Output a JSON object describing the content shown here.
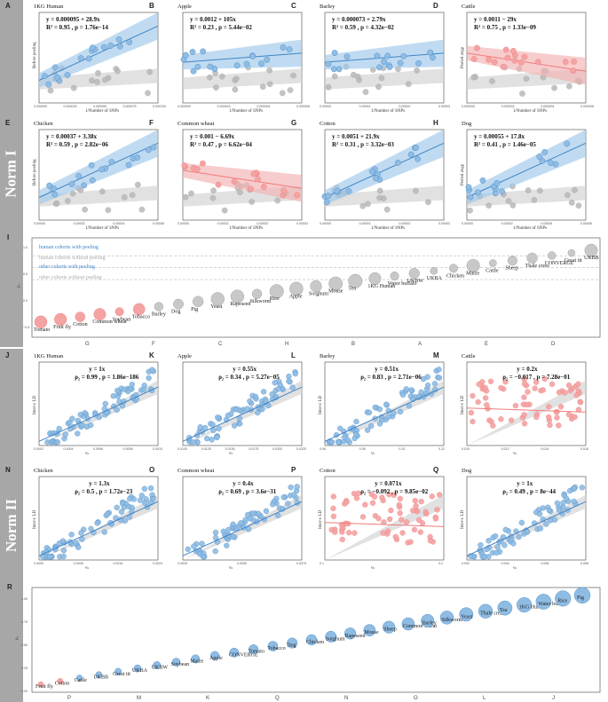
{
  "colors": {
    "blue": "#3f84c6",
    "blue_fill": "#8fbce3",
    "red": "#f07a7a",
    "red_fill": "#f4a3a3",
    "grey": "#b9b9b9",
    "grey_band": "#d4d4d4",
    "blue_band": "#9ec8ea",
    "red_band": "#f3b0b0",
    "sidebar": "#a7a7a7"
  },
  "sections": [
    {
      "label": "Norm I"
    },
    {
      "label": "Norm II"
    }
  ],
  "panels_top": [
    {
      "letter": "A",
      "title": "1KG Human",
      "eq": "y = 0.000095 + 28.9x",
      "stat": "R² = 0.95 , p = 1.76e−14",
      "xlabel": "1/Number of SNPs",
      "ylabel": "Before peeling",
      "color": "blue",
      "trend": "up",
      "xticks": [
        "0.000000",
        "0.000025",
        "0.000050",
        "0.000075",
        "0.000100"
      ]
    },
    {
      "letter": "B",
      "title": "Apple",
      "eq": "y = 0.0012 + 105x",
      "stat": "R² = 0.23 , p = 5.44e−02",
      "xlabel": "1/Number of SNPs",
      "ylabel": "",
      "color": "blue",
      "trend": "flat",
      "xticks": [
        "0.000000",
        "0.000002",
        "0.000004",
        "0.000006"
      ]
    },
    {
      "letter": "C",
      "title": "Barley",
      "eq": "y = 0.000073 + 2.79x",
      "stat": "R² = 0.59 , p = 4.32e−02",
      "xlabel": "1/Number of SNPs",
      "ylabel": "",
      "color": "blue",
      "trend": "flat",
      "xticks": [
        "0.00000",
        "0.00001",
        "0.00002",
        "0.00003"
      ]
    },
    {
      "letter": "D",
      "title": "Cattle",
      "eq": "y = 0.0011 − 29x",
      "stat": "R² = 0.75 , p = 1.33e−09",
      "xlabel": "1/Number of SNPs",
      "ylabel": "Peeled avgρ",
      "color": "red",
      "trend": "down",
      "xticks": [
        "0.000000",
        "0.000002",
        "0.000004",
        "0.000006"
      ]
    },
    {
      "letter": "E",
      "title": "Chicken",
      "eq": "y = 0.00037 + 3.38x",
      "stat": "R² = 0.59 , p = 2.82e−06",
      "xlabel": "1/Number of SNPs",
      "ylabel": "Before peeling",
      "color": "blue",
      "trend": "up",
      "xticks": [
        "0.00000",
        "0.00002",
        "0.00004",
        "0.00006"
      ]
    },
    {
      "letter": "F",
      "title": "Common wheat",
      "eq": "y = 0.001 − 6.69x",
      "stat": "R² = 0.47 , p = 6.62e−04",
      "xlabel": "1/Number of SNPs",
      "ylabel": "",
      "color": "red",
      "trend": "down",
      "xticks": [
        "0.00000",
        "0.00001",
        "0.00002",
        "0.00003"
      ]
    },
    {
      "letter": "G",
      "title": "Cotton",
      "eq": "y = 0.0051 + 21.9x",
      "stat": "R² = 0.31 , p = 3.32e−03",
      "xlabel": "1/Number of SNPs",
      "ylabel": "",
      "color": "blue",
      "trend": "up",
      "xticks": [
        "0.00000",
        "0.00001",
        "0.00002",
        "0.00003"
      ]
    },
    {
      "letter": "H",
      "title": "Dog",
      "eq": "y = 0.00055 + 17.8x",
      "stat": "R² = 0.41 , p = 1.46e−05",
      "xlabel": "1/Number of SNPs",
      "ylabel": "Peeled avgρ",
      "color": "blue",
      "trend": "up",
      "xticks": [
        "0.00000",
        "0.00002",
        "0.00004",
        "0.00006"
      ]
    }
  ],
  "panel_I": {
    "letter": "I",
    "ylabel": "ρ₁",
    "yticks": [
      "1.0",
      "0.5",
      "0.0",
      "−0.5"
    ],
    "legend": [
      "human cohorts with peeling",
      "human cohorts without peeling",
      "other cohorts with peeling",
      "other cohorts without peeling"
    ],
    "labels": [
      "Tomato",
      "Fruit fly",
      "Cotton",
      "Common wheat",
      "Soybean",
      "Tobacco",
      "Barley",
      "Dog",
      "Pig",
      "Yeast",
      "Rapeseed",
      "Silkworm",
      "Rice",
      "Apple",
      "Sorghum",
      "Mouse",
      "Tea",
      "1KG Human",
      "Water buffalo",
      "UKBW",
      "UKBA",
      "Chicken",
      "Maize",
      "Cattle",
      "Sheep",
      "Thale cress",
      "CONVERGE",
      "Great tit",
      "UKBB"
    ],
    "xletters": [
      "G",
      "F",
      "C",
      "H",
      "B",
      "A",
      "E",
      "D"
    ]
  },
  "panels_bottom": [
    {
      "letter": "J",
      "title": "1KG Human",
      "eq": "y = 1x",
      "stat": "ρ₂ = 0.99 , p = 1.86e−186",
      "xlabel": "vₖ",
      "ylabel": "Inter-c LD",
      "color": "blue",
      "xticks": [
        "0.0002",
        "0.0004",
        "0.0006",
        "0.0008",
        "0.0010"
      ]
    },
    {
      "letter": "K",
      "title": "Apple",
      "eq": "y = 0.55x",
      "stat": "ρ₂ = 0.34 , p = 5.27e−05",
      "xlabel": "vₖ",
      "ylabel": "",
      "color": "blue",
      "xticks": [
        "0.0100",
        "0.0125",
        "0.0150",
        "0.0175",
        "0.0200",
        "0.0225"
      ]
    },
    {
      "letter": "L",
      "title": "Barley",
      "eq": "y = 0.51x",
      "stat": "ρ₂ = 0.83 , p = 2.71e−06",
      "xlabel": "vₖ",
      "ylabel": "Inter-c LD",
      "color": "blue",
      "xticks": [
        "0.06",
        "0.08",
        "0.10",
        "0.12"
      ]
    },
    {
      "letter": "M",
      "title": "Cattle",
      "eq": "y = 0.2x",
      "stat": "ρ₂ = −0.017 , p = 7.28e−01",
      "xlabel": "vₖ",
      "ylabel": "Inter-c LD",
      "color": "red",
      "xticks": [
        "0.010",
        "0.012",
        "0.014",
        "0.016"
      ]
    },
    {
      "letter": "N",
      "title": "Chicken",
      "eq": "y = 1.3x",
      "stat": "ρ₂ = 0.5 , p = 1.72e−23",
      "xlabel": "vₖ",
      "ylabel": "Inter-c LD",
      "color": "blue",
      "xticks": [
        "0.0000",
        "0.0008",
        "0.0016",
        "0.0024"
      ]
    },
    {
      "letter": "O",
      "title": "Common wheat",
      "eq": "y = 0.4x",
      "stat": "ρ₂ = 0.69 , p = 3.6e−31",
      "xlabel": "vₖ",
      "ylabel": "",
      "color": "blue",
      "xticks": [
        "0.0025",
        "0.0050",
        "0.0075"
      ]
    },
    {
      "letter": "P",
      "title": "Cotton",
      "eq": "y = 0.071x",
      "stat": "ρ₂ = −0.092 , p = 9.85e−02",
      "xlabel": "vₖ",
      "ylabel": "Inter-c LD",
      "color": "red",
      "xticks": [
        "0.1",
        "0.2"
      ]
    },
    {
      "letter": "Q",
      "title": "Dog",
      "eq": "y = 1x",
      "stat": "ρ₂ = 0.49 , p = 8e−44",
      "xlabel": "vₖ",
      "ylabel": "Inter-c LD",
      "color": "blue",
      "xticks": [
        "0.002",
        "0.004",
        "0.006",
        "0.008"
      ]
    }
  ],
  "panel_R": {
    "letter": "R",
    "ylabel": "ρ₂",
    "yticks": [
      "1.00",
      "0.75",
      "0.50",
      "0.25",
      "0.00"
    ],
    "labels": [
      "Fruit fly",
      "Cotton",
      "Cattle",
      "UKBB",
      "Great tit",
      "UKBA",
      "UKBW",
      "Soybean",
      "Maize",
      "Apple",
      "CONVERGE",
      "Tomato",
      "Tobacco",
      "Dog",
      "Chicken",
      "Sorghum",
      "Rapeseed",
      "Mouse",
      "Sheep",
      "Common wheat",
      "Barley",
      "Silkworm",
      "Yeast",
      "Thale cress",
      "Tea",
      "1KG Human",
      "Water buffalo",
      "Rice",
      "Pig"
    ],
    "xletters": [
      "P",
      "M",
      "K",
      "Q",
      "N",
      "O",
      "L",
      "J"
    ]
  }
}
